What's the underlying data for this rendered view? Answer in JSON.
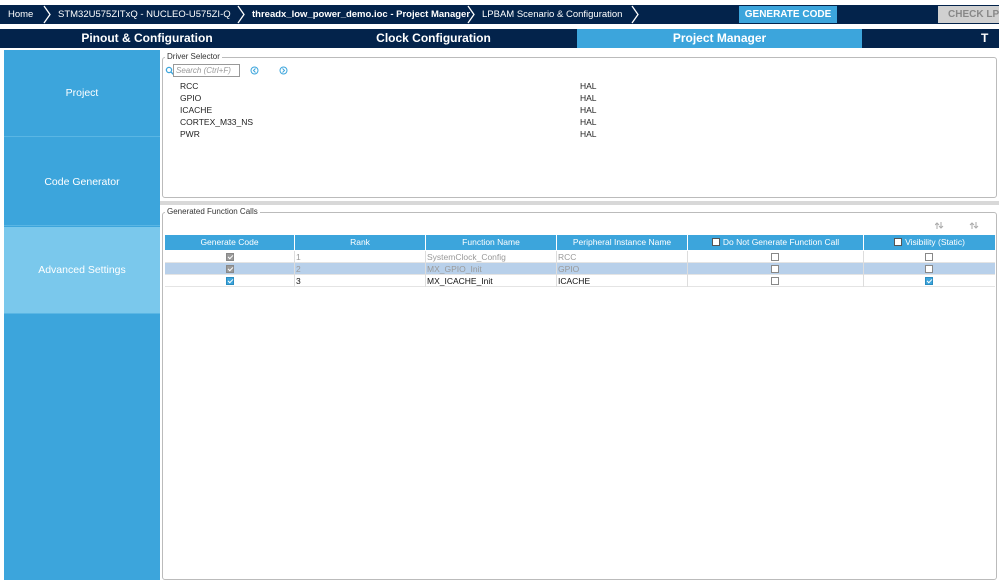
{
  "breadcrumb": [
    "Home",
    "STM32U575ZITxQ  -  NUCLEO-U575ZI-Q",
    "threadx_low_power_demo.ioc - Project Manager",
    "LPBAM Scenario & Configuration"
  ],
  "breadcrumb_active": 2,
  "buttons": {
    "generate": "GENERATE CODE",
    "check": "CHECK LPB"
  },
  "tabs": [
    "Pinout & Configuration",
    "Clock Configuration",
    "Project Manager",
    "T"
  ],
  "active_tab": 2,
  "sidebar": {
    "items": [
      "Project",
      "Code Generator",
      "Advanced Settings"
    ],
    "active": 2
  },
  "driver_selector": {
    "title": "Driver Selector",
    "search_placeholder": "Search (Ctrl+F)",
    "rows": [
      [
        "RCC",
        "HAL"
      ],
      [
        "GPIO",
        "HAL"
      ],
      [
        "ICACHE",
        "HAL"
      ],
      [
        "CORTEX_M33_NS",
        "HAL"
      ],
      [
        "PWR",
        "HAL"
      ]
    ]
  },
  "function_calls": {
    "title": "Generated Function Calls",
    "columns": [
      "Generate Code",
      "Rank",
      "Function Name",
      "Peripheral Instance Name",
      "Do Not Generate Function Call",
      "Visibility (Static)"
    ],
    "rows": [
      {
        "generate": true,
        "rank": 1,
        "function": "SystemClock_Config",
        "instance": "RCC",
        "do_not_generate": false,
        "visibility": false,
        "enabled": false
      },
      {
        "generate": true,
        "rank": 2,
        "function": "MX_GPIO_Init",
        "instance": "GPIO",
        "do_not_generate": false,
        "visibility": false,
        "enabled": false
      },
      {
        "generate": true,
        "rank": 3,
        "function": "MX_ICACHE_Init",
        "instance": "ICACHE",
        "do_not_generate": false,
        "visibility": true,
        "enabled": true
      }
    ],
    "selected_row": 1
  }
}
